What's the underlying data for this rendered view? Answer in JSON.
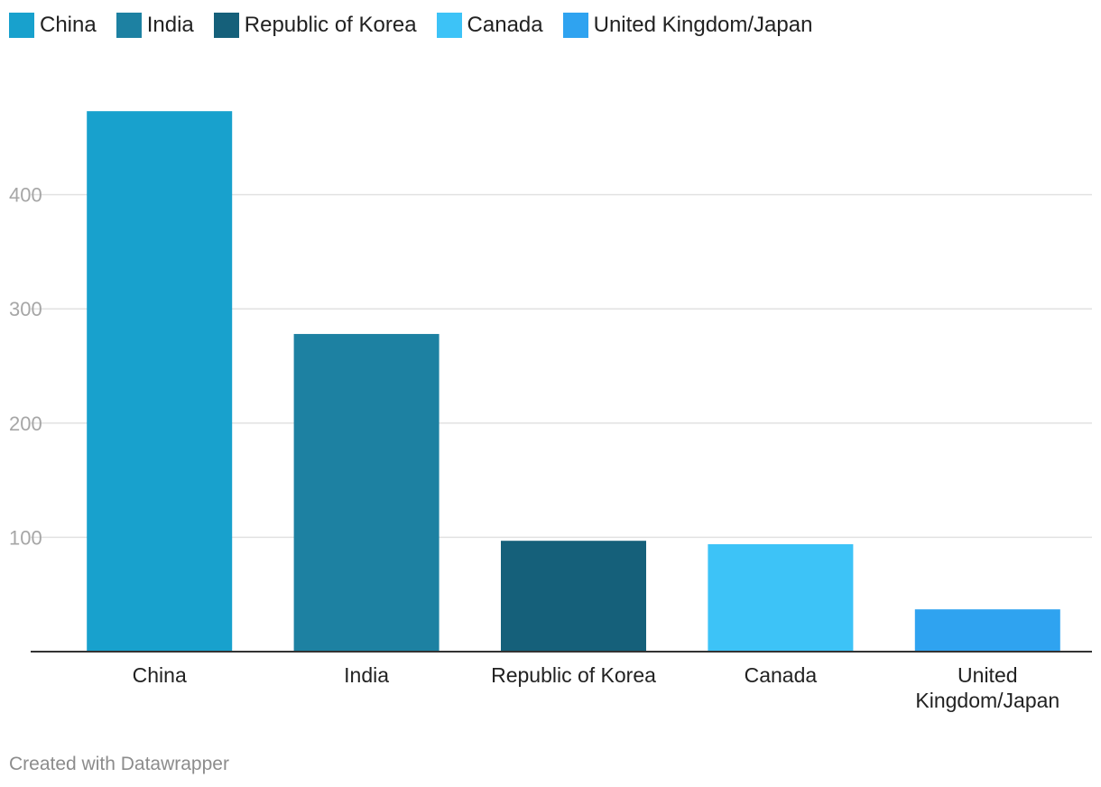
{
  "chart_data": {
    "type": "bar",
    "title": "",
    "xlabel": "",
    "ylabel": "",
    "categories": [
      "China",
      "India",
      "Republic of Korea",
      "Canada",
      "United Kingdom/Japan"
    ],
    "category_label_lines": [
      [
        "China"
      ],
      [
        "India"
      ],
      [
        "Republic of Korea"
      ],
      [
        "Canada"
      ],
      [
        "United",
        "Kingdom/Japan"
      ]
    ],
    "values": [
      473,
      278,
      97,
      94,
      37
    ],
    "colors": [
      "#18a1cd",
      "#1d81a2",
      "#15607a",
      "#3dc3f7",
      "#2fa3f0"
    ],
    "yticks": [
      100,
      200,
      300,
      400
    ],
    "ylim": [
      0,
      480
    ],
    "grid": true,
    "legend": {
      "position": "top-left",
      "entries": [
        "China",
        "India",
        "Republic of Korea",
        "Canada",
        "United Kingdom/Japan"
      ]
    }
  },
  "footer": {
    "credit": "Created with Datawrapper"
  }
}
